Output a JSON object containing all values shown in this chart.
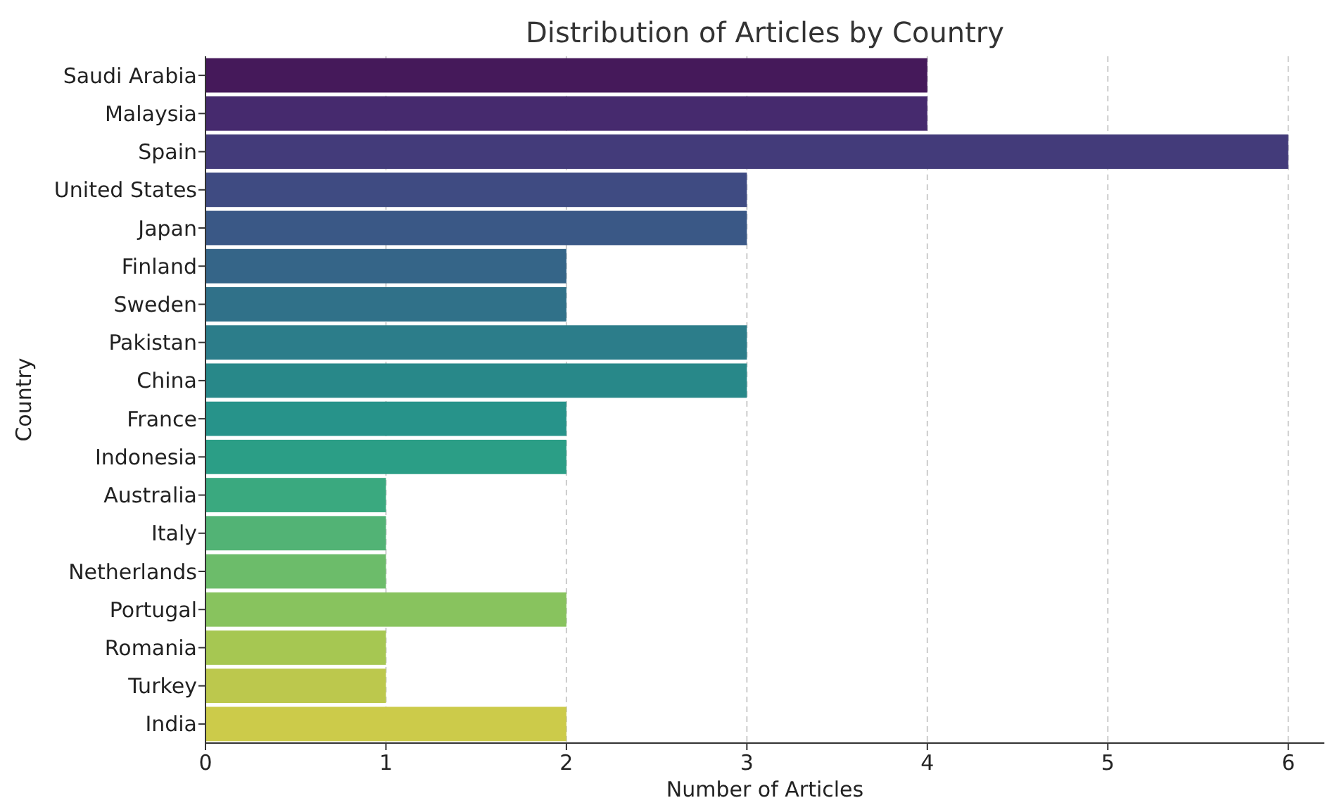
{
  "chart_data": {
    "type": "bar",
    "orientation": "horizontal",
    "title": "Distribution of Articles by Country",
    "xlabel": "Number of Articles",
    "ylabel": "Country",
    "categories": [
      "Saudi Arabia",
      "Malaysia",
      "Spain",
      "United States",
      "Japan",
      "Finland",
      "Sweden",
      "Pakistan",
      "China",
      "France",
      "Indonesia",
      "Australia",
      "Italy",
      "Netherlands",
      "Portugal",
      "Romania",
      "Turkey",
      "India"
    ],
    "values": [
      4,
      4,
      6,
      3,
      3,
      2,
      2,
      3,
      3,
      2,
      2,
      1,
      1,
      1,
      2,
      1,
      1,
      2
    ],
    "colors": [
      "#45195a",
      "#462a6e",
      "#433b7a",
      "#3f4b82",
      "#3a5886",
      "#356588",
      "#307189",
      "#2c7d8a",
      "#288889",
      "#27938a",
      "#2b9e86",
      "#3aa97f",
      "#52b375",
      "#6cbc6a",
      "#88c35e",
      "#a6c752",
      "#bcc84d",
      "#cccb4a"
    ],
    "xlim": [
      0,
      6.2
    ],
    "xticks": [
      0,
      1,
      2,
      3,
      4,
      5,
      6
    ],
    "grid": "x"
  }
}
